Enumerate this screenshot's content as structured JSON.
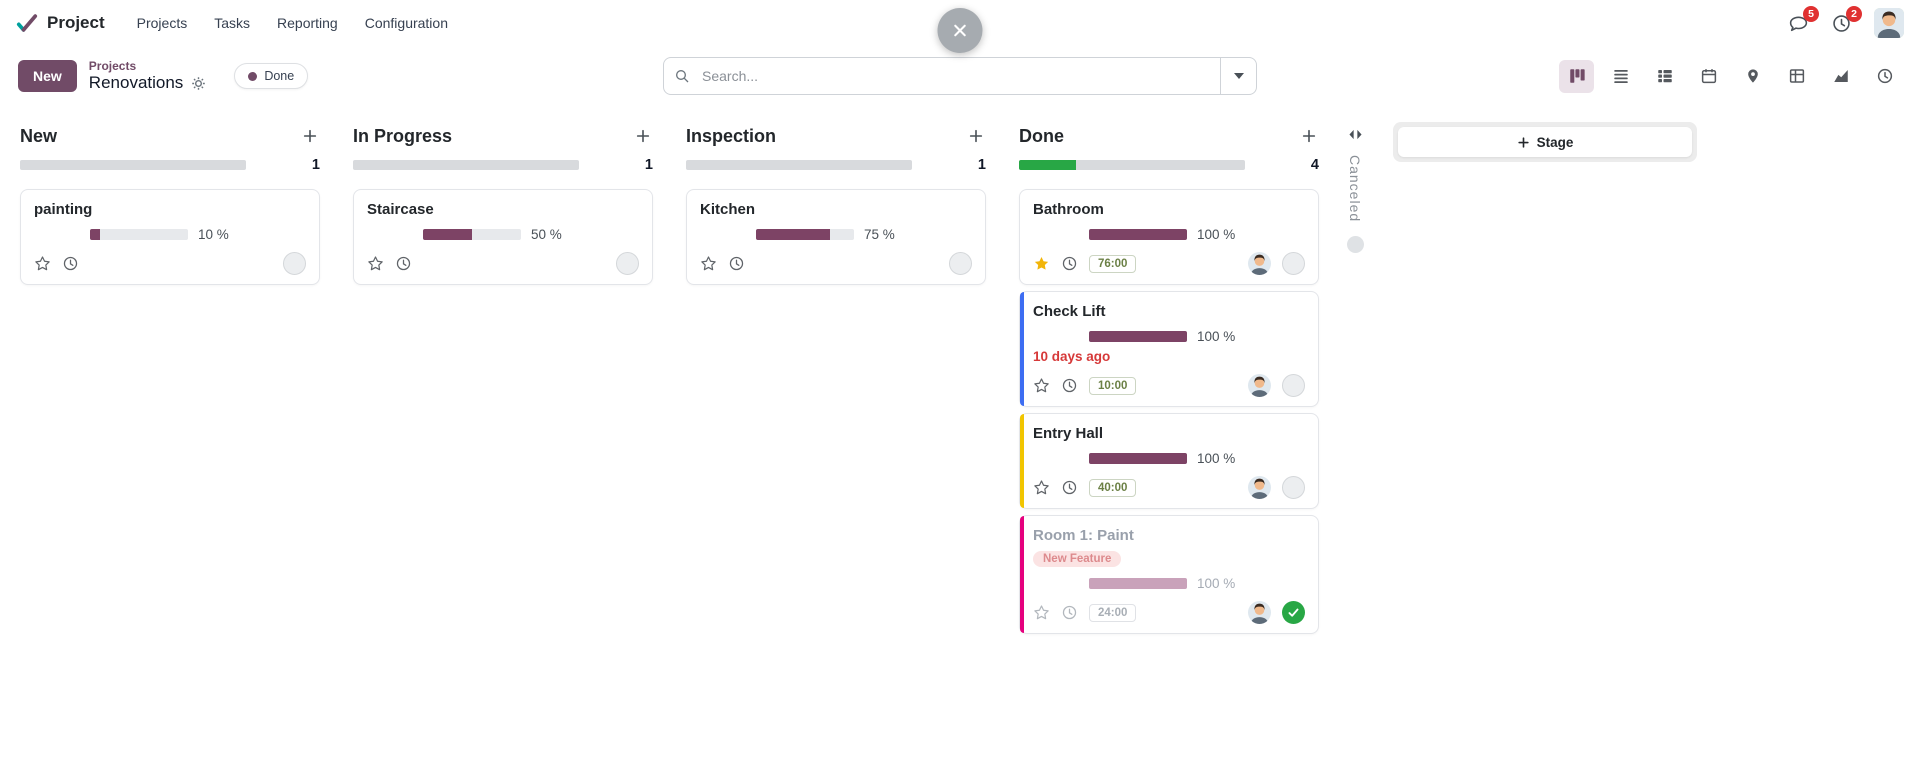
{
  "nav": {
    "app": "Project",
    "menus": [
      "Projects",
      "Tasks",
      "Reporting",
      "Configuration"
    ],
    "message_badge": "5",
    "activity_badge": "2"
  },
  "control": {
    "new_label": "New",
    "breadcrumb_parent": "Projects",
    "breadcrumb_current": "Renovations",
    "filter_label": "Done",
    "search_placeholder": "Search...",
    "views": [
      "kanban",
      "list",
      "th-list",
      "calendar",
      "map",
      "pivot",
      "graph",
      "clock"
    ]
  },
  "board": {
    "add_stage_label": "Stage",
    "collapsed_column": {
      "name": "Canceled"
    },
    "columns": [
      {
        "name": "New",
        "count": "1",
        "done_pct": 0,
        "cards": [
          {
            "title": "painting",
            "percent": 10,
            "percent_label": "10 %"
          }
        ]
      },
      {
        "name": "In Progress",
        "count": "1",
        "done_pct": 0,
        "cards": [
          {
            "title": "Staircase",
            "percent": 50,
            "percent_label": "50 %"
          }
        ]
      },
      {
        "name": "Inspection",
        "count": "1",
        "done_pct": 0,
        "cards": [
          {
            "title": "Kitchen",
            "percent": 75,
            "percent_label": "75 %"
          }
        ]
      },
      {
        "name": "Done",
        "count": "4",
        "done_pct": 25,
        "cards": [
          {
            "title": "Bathroom",
            "percent": 100,
            "percent_label": "100 %",
            "hours": "76:00"
          },
          {
            "title": "Check Lift",
            "percent": 100,
            "percent_label": "100 %",
            "hours": "10:00",
            "deadline": "10 days ago",
            "edge": "#3d6df2"
          },
          {
            "title": "Entry Hall",
            "percent": 100,
            "percent_label": "100 %",
            "hours": "40:00",
            "edge": "#f1c500"
          },
          {
            "title": "Room 1: Paint",
            "percent": 100,
            "percent_label": "100 %",
            "hours": "24:00",
            "tag": "New Feature",
            "edge": "#e5007e"
          }
        ]
      }
    ]
  },
  "colors": {
    "brand": "#714B67",
    "card_progress": "#7d4365",
    "column_done": "#28a745",
    "danger": "#dc3545",
    "star": "#f2b50a",
    "edge_blue": "#3d6df2",
    "edge_yellow": "#f1c500",
    "edge_pink": "#e5007e"
  }
}
